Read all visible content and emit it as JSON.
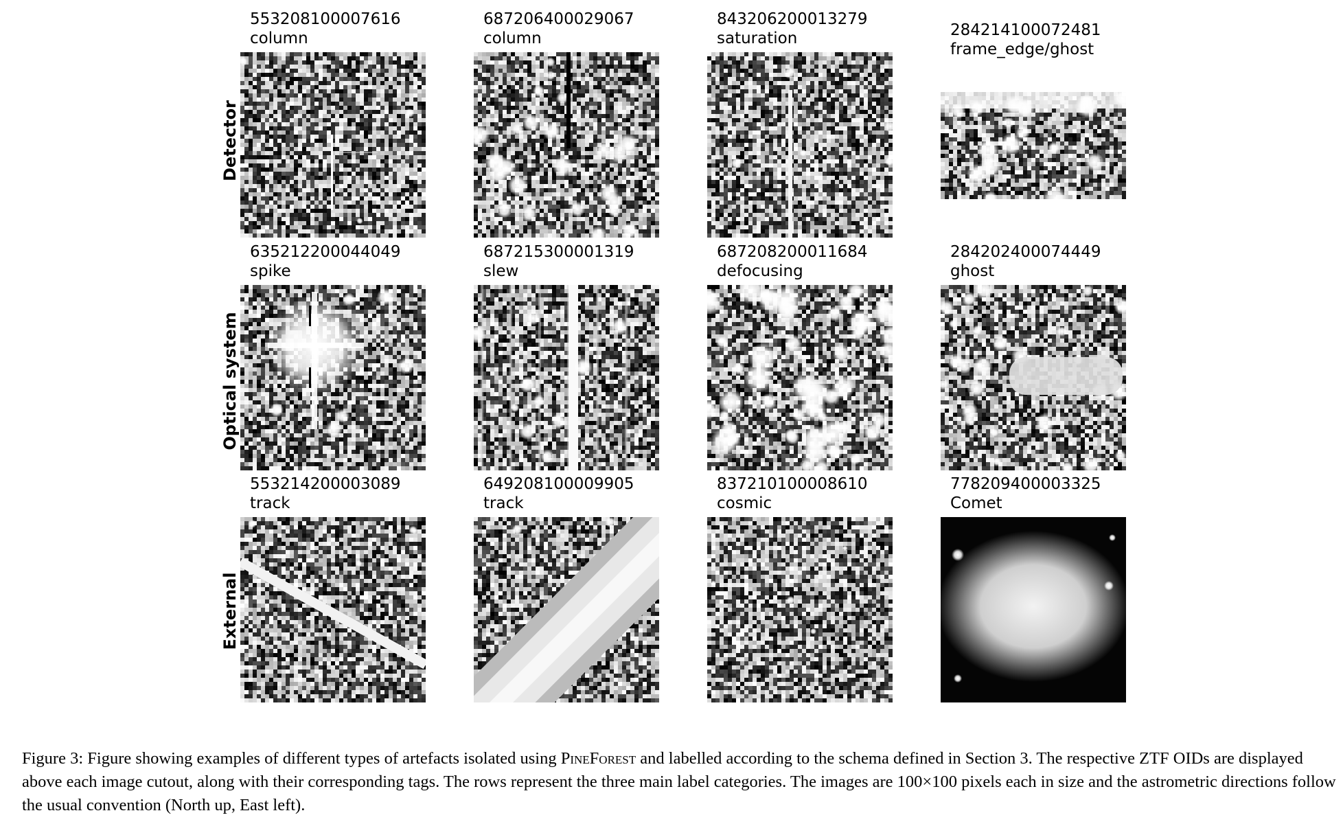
{
  "row_labels": [
    "Detector",
    "Optical system",
    "External"
  ],
  "cutouts": [
    {
      "oid": "553208100007616",
      "tag": "column"
    },
    {
      "oid": "687206400029067",
      "tag": "column"
    },
    {
      "oid": "843206200013279",
      "tag": "saturation"
    },
    {
      "oid": "284214100072481",
      "tag": "frame_edge/ghost"
    },
    {
      "oid": "635212200044049",
      "tag": "spike"
    },
    {
      "oid": "687215300001319",
      "tag": "slew"
    },
    {
      "oid": "687208200011684",
      "tag": "defocusing"
    },
    {
      "oid": "284202400074449",
      "tag": "ghost"
    },
    {
      "oid": "553214200003089",
      "tag": "track"
    },
    {
      "oid": "649208100009905",
      "tag": "track"
    },
    {
      "oid": "837210100008610",
      "tag": "cosmic"
    },
    {
      "oid": "778209400003325",
      "tag": "Comet"
    }
  ],
  "caption": {
    "part1": "Figure 3: Figure showing examples of different types of artefacts isolated using ",
    "tool": "PineForest",
    "part2": " and labelled according to the schema defined in Section 3. The respective ZTF OIDs are displayed above each image cutout, along with their corresponding tags. The rows represent the three main label categories. The images are 100×100 pixels each in size and the astrometric directions follow the usual convention (North up, East left)."
  }
}
